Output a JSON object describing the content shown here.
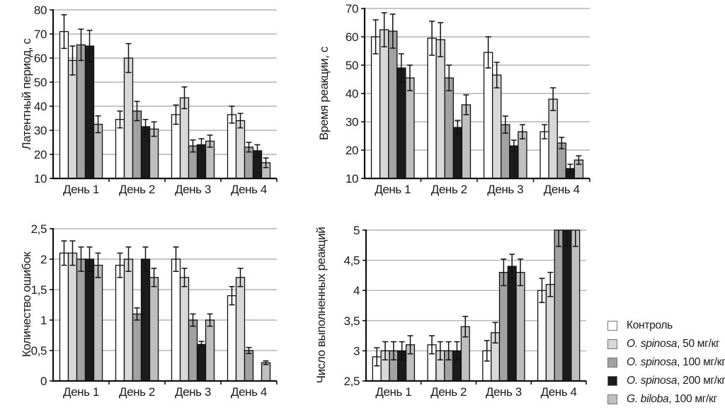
{
  "style": {
    "series_colors": [
      "#ffffff",
      "#d8d8d8",
      "#a2a2a2",
      "#1b1b1b",
      "#bfbfbf"
    ],
    "grid_color": "#b3b3b3",
    "axis_color": "#111111",
    "bar_border": "#111111"
  },
  "legend": {
    "position": "bottom-right",
    "items": [
      {
        "species": "",
        "rest": "Контроль",
        "color": "#ffffff"
      },
      {
        "species": "O. spinosa",
        "rest": ", 50 мг/кг",
        "color": "#d8d8d8"
      },
      {
        "species": "O. spinosa",
        "rest": ", 100 мг/кг",
        "color": "#a2a2a2"
      },
      {
        "species": "O. spinosa",
        "rest": ", 200 мг/кг",
        "color": "#1b1b1b"
      },
      {
        "species": "G. biloba",
        "rest": ", 100 мг/кг",
        "color": "#bfbfbf"
      }
    ]
  },
  "chart_data": [
    {
      "type": "bar",
      "ylabel": "Латентный период, с",
      "categories": [
        "День 1",
        "День 2",
        "День 3",
        "День 4"
      ],
      "ylim": [
        10,
        80
      ],
      "yticks": [
        10,
        20,
        30,
        40,
        50,
        60,
        70,
        80
      ],
      "ytick_labels": [
        "10",
        "20",
        "30",
        "40",
        "50",
        "60",
        "70",
        "80"
      ],
      "grid": true,
      "series": [
        {
          "name": "Контроль",
          "values": [
            71,
            34.5,
            36.5,
            36.5
          ],
          "errors": [
            7,
            3.5,
            4,
            3.5
          ]
        },
        {
          "name": "O. spinosa, 50 мг/кг",
          "values": [
            59,
            60,
            43.5,
            34
          ],
          "errors": [
            6,
            6,
            4.5,
            3
          ]
        },
        {
          "name": "O. spinosa, 100 мг/кг",
          "values": [
            65.5,
            38,
            23.5,
            23
          ],
          "errors": [
            6.5,
            4,
            2.5,
            2
          ]
        },
        {
          "name": "O. spinosa, 200 мг/кг",
          "values": [
            65,
            31.5,
            24,
            21.5
          ],
          "errors": [
            6.5,
            3,
            2.5,
            2.5
          ]
        },
        {
          "name": "G. biloba, 100 мг/кг",
          "values": [
            32.5,
            30.5,
            25.5,
            16.5
          ],
          "errors": [
            3.5,
            3,
            2.5,
            2
          ]
        }
      ]
    },
    {
      "type": "bar",
      "ylabel": "Время реакции, с",
      "categories": [
        "День 1",
        "День 2",
        "День 3",
        "День 4"
      ],
      "ylim": [
        10,
        70
      ],
      "yticks": [
        10,
        20,
        30,
        40,
        50,
        60,
        70
      ],
      "ytick_labels": [
        "10",
        "20",
        "30",
        "40",
        "50",
        "60",
        "70"
      ],
      "grid": true,
      "series": [
        {
          "name": "Контроль",
          "values": [
            60,
            59.5,
            54.5,
            26.5
          ],
          "errors": [
            6,
            6,
            5.5,
            2.5
          ]
        },
        {
          "name": "O. spinosa, 50 мг/кг",
          "values": [
            62.5,
            59,
            46.5,
            38
          ],
          "errors": [
            6,
            6,
            4.5,
            4
          ]
        },
        {
          "name": "O. spinosa, 100 мг/кг",
          "values": [
            62,
            45.5,
            29,
            22.5
          ],
          "errors": [
            6,
            4.5,
            3,
            2
          ]
        },
        {
          "name": "O. spinosa, 200 мг/кг",
          "values": [
            49,
            28,
            21.5,
            13.5
          ],
          "errors": [
            5,
            2.5,
            2,
            1.5
          ]
        },
        {
          "name": "G. biloba, 100 мг/кг",
          "values": [
            45.5,
            36,
            26.5,
            16.5
          ],
          "errors": [
            4.5,
            3.5,
            2.5,
            1.5
          ]
        }
      ]
    },
    {
      "type": "bar",
      "ylabel": "Количество ошибок",
      "categories": [
        "День 1",
        "День 2",
        "День 3",
        "День 4"
      ],
      "ylim": [
        0,
        2.5
      ],
      "yticks": [
        0,
        0.5,
        1,
        1.5,
        2,
        2.5
      ],
      "ytick_labels": [
        "0",
        "0,5",
        "1",
        "1,5",
        "2",
        "2,5"
      ],
      "grid": true,
      "series": [
        {
          "name": "Контроль",
          "values": [
            2.1,
            1.9,
            2.0,
            1.4
          ],
          "errors": [
            0.2,
            0.2,
            0.2,
            0.15
          ]
        },
        {
          "name": "O. spinosa, 50 мг/кг",
          "values": [
            2.1,
            2.0,
            1.7,
            1.7
          ],
          "errors": [
            0.2,
            0.2,
            0.15,
            0.15
          ]
        },
        {
          "name": "O. spinosa, 100 мг/кг",
          "values": [
            2.0,
            1.1,
            1.0,
            0.5
          ],
          "errors": [
            0.2,
            0.1,
            0.1,
            0.05
          ]
        },
        {
          "name": "O. spinosa, 200 мг/кг",
          "values": [
            2.0,
            2.0,
            0.6,
            0
          ],
          "errors": [
            0.2,
            0.2,
            0.05,
            0
          ]
        },
        {
          "name": "G. biloba, 100 мг/кг",
          "values": [
            1.9,
            1.7,
            1.0,
            0.3
          ],
          "errors": [
            0.2,
            0.15,
            0.1,
            0.03
          ]
        }
      ]
    },
    {
      "type": "bar",
      "ylabel": "Число выполненных реакций",
      "categories": [
        "День 1",
        "День 2",
        "День 3",
        "День 4"
      ],
      "ylim": [
        2.5,
        5
      ],
      "yticks": [
        2.5,
        3,
        3.5,
        4,
        4.5,
        5
      ],
      "ytick_labels": [
        "2,5",
        "3",
        "3,5",
        "4",
        "4,5",
        "5"
      ],
      "grid": true,
      "series": [
        {
          "name": "Контроль",
          "values": [
            2.9,
            3.1,
            3.0,
            4.0
          ],
          "errors": [
            0.15,
            0.15,
            0.17,
            0.2
          ]
        },
        {
          "name": "O. spinosa, 50 мг/кг",
          "values": [
            3.0,
            3.0,
            3.3,
            4.1
          ],
          "errors": [
            0.15,
            0.15,
            0.17,
            0.2
          ]
        },
        {
          "name": "O. spinosa, 100 мг/кг",
          "values": [
            3.0,
            3.0,
            4.3,
            5.0
          ],
          "errors": [
            0.15,
            0.15,
            0.22,
            0.27
          ]
        },
        {
          "name": "O. spinosa, 200 мг/кг",
          "values": [
            3.0,
            3.0,
            4.4,
            5.0
          ],
          "errors": [
            0.15,
            0.15,
            0.2,
            0.27
          ]
        },
        {
          "name": "G. biloba, 100 мг/кг",
          "values": [
            3.1,
            3.4,
            4.3,
            5.0
          ],
          "errors": [
            0.15,
            0.17,
            0.22,
            0.27
          ]
        }
      ]
    }
  ]
}
